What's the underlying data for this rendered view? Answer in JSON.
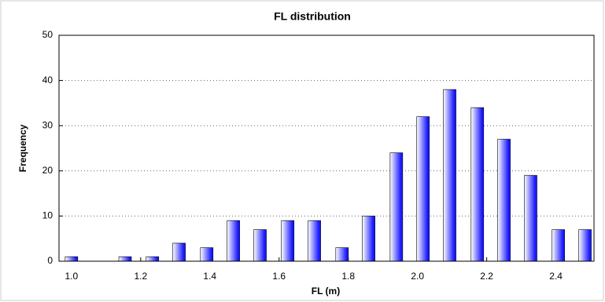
{
  "chart_data": {
    "type": "bar",
    "title": "FL distribution",
    "x_label": "FL (m)",
    "y_label": "Frequency",
    "x": [
      1.0,
      1.078,
      1.155,
      1.234,
      1.311,
      1.391,
      1.468,
      1.545,
      1.625,
      1.702,
      1.782,
      1.859,
      1.939,
      2.016,
      2.093,
      2.173,
      2.25,
      2.327,
      2.407,
      2.484
    ],
    "values": [
      1,
      0,
      1,
      1,
      4,
      3,
      9,
      7,
      9,
      9,
      3,
      10,
      24,
      32,
      38,
      34,
      27,
      19,
      7,
      7
    ],
    "color": "#1a1aff",
    "xlim": [
      0.964,
      2.51
    ],
    "xticks": [
      {
        "value": 1.0,
        "label": "1.0"
      },
      1.2,
      1.4,
      1.6,
      1.8,
      {
        "value": 2.0,
        "label": "2.0"
      },
      2.2,
      2.4
    ],
    "ylim": [
      0,
      50
    ],
    "yticks": [
      0,
      10,
      20,
      30,
      40,
      50
    ],
    "grid": true
  }
}
